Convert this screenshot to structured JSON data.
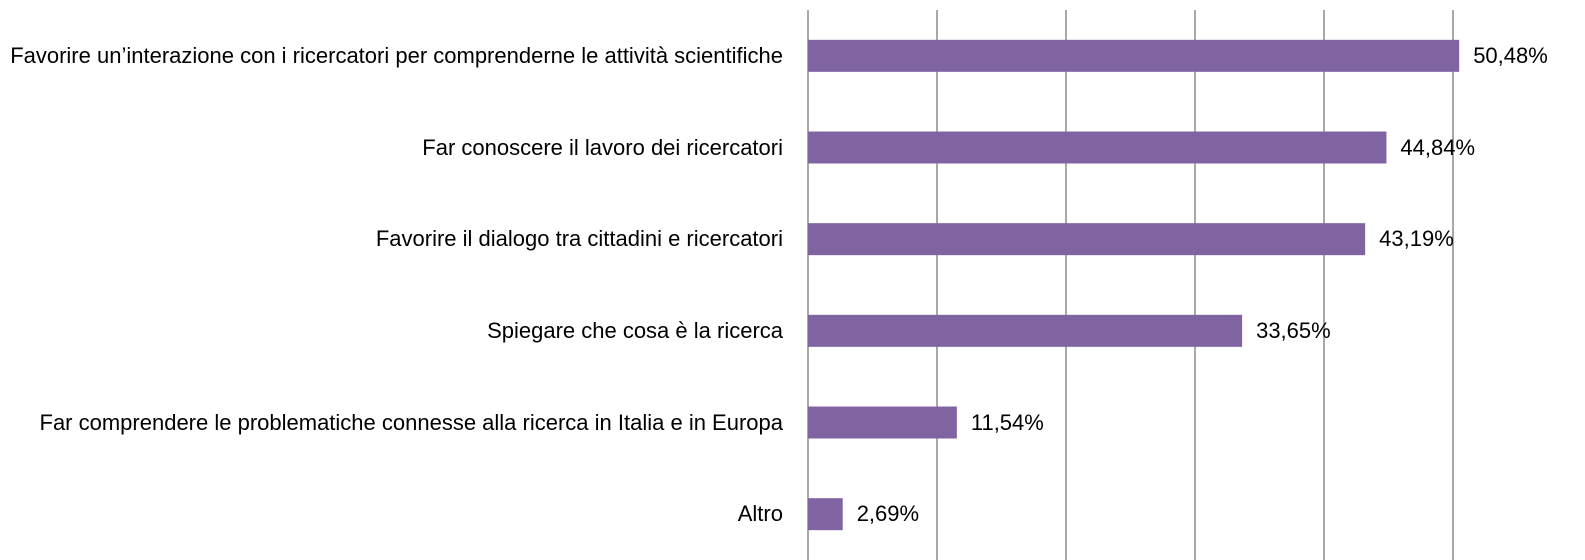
{
  "chart_data": {
    "type": "bar",
    "orientation": "horizontal",
    "categories": [
      "Favorire un’interazione con i ricercatori per comprenderne le attività scientifiche",
      "Far conoscere il lavoro dei ricercatori",
      "Favorire il dialogo tra cittadini e ricercatori",
      "Spiegare che cosa è la ricerca",
      "Far comprendere le problematiche connesse alla ricerca in Italia e in Europa",
      "Altro"
    ],
    "values": [
      50.48,
      44.84,
      43.19,
      33.65,
      11.54,
      2.69
    ],
    "value_labels": [
      "50,48%",
      "44,84%",
      "43,19%",
      "33,65%",
      "11,54%",
      "2,69%"
    ],
    "color": "#8064a2",
    "xlim": [
      0,
      60
    ],
    "xticks": [
      0,
      10,
      20,
      30,
      40,
      50
    ],
    "grid": true
  }
}
